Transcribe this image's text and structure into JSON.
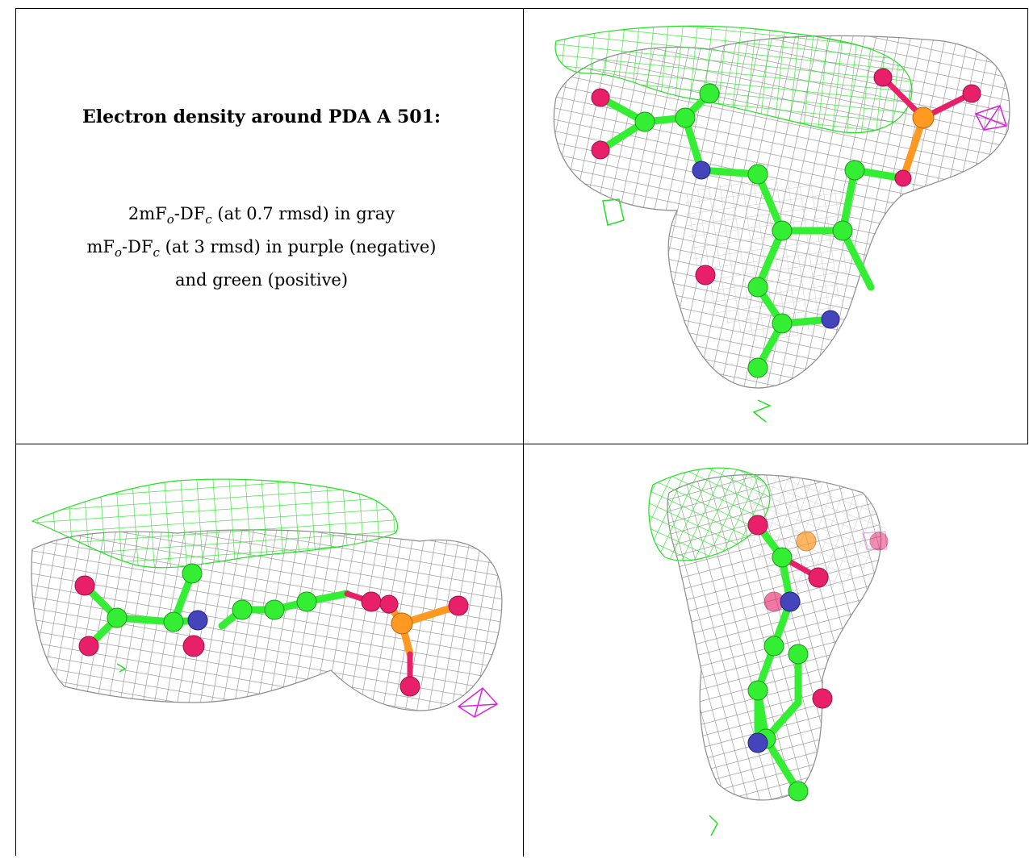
{
  "legend": {
    "title": "Electron density around PDA A 501:",
    "line1_a": "2mF",
    "line1_sub1": "o",
    "line1_b": "-DF",
    "line1_sub2": "c",
    "line1_c": " (at 0.7 rmsd) in gray",
    "line2_a": "mF",
    "line2_sub1": "o",
    "line2_b": "-DF",
    "line2_sub2": "c",
    "line2_c": " (at 3 rmsd) in purple (negative)",
    "line3": "and green (positive)"
  },
  "colors": {
    "carbon": "#33ee33",
    "oxygen": "#e8206a",
    "nitrogen": "#4444bb",
    "phosphorus": "#ff9922",
    "mesh_gray": "#9a9a9a",
    "mesh_green": "#22e022",
    "mesh_purple": "#dd22dd"
  },
  "panels": [
    {
      "name": "view-top-right",
      "atom_icons": [
        "carbon-atom",
        "oxygen-atom",
        "nitrogen-atom",
        "phosphorus-atom"
      ]
    },
    {
      "name": "view-bottom-left",
      "atom_icons": [
        "carbon-atom",
        "oxygen-atom",
        "nitrogen-atom",
        "phosphorus-atom"
      ]
    },
    {
      "name": "view-bottom-right",
      "atom_icons": [
        "carbon-atom",
        "oxygen-atom",
        "nitrogen-atom",
        "phosphorus-atom"
      ]
    }
  ]
}
